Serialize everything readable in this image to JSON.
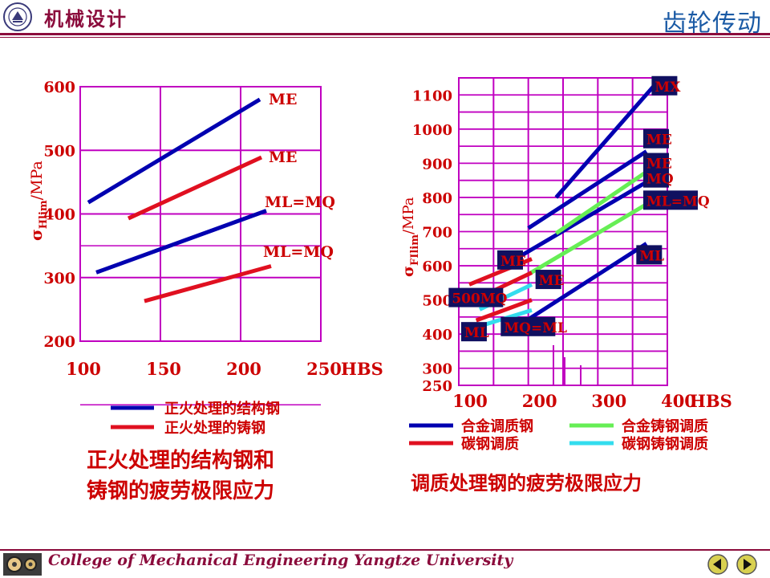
{
  "header": {
    "course_title": "机械设计",
    "section_title": "齿轮传动"
  },
  "footer": {
    "text": "College of Mechanical Engineering Yangtze University",
    "prev_icon": "triangle-left-icon",
    "next_icon": "triangle-right-icon"
  },
  "colors": {
    "accent": "#8b0c3c",
    "grid": "#c000c0",
    "blue": "#0000b0",
    "red": "#e01020",
    "green": "#66ee55",
    "cyan": "#33ddee",
    "label_red": "#cc0000",
    "label_box": "#101060"
  },
  "chart_data": [
    {
      "type": "line",
      "ylabel_sub": "Hlim",
      "ylabel_unit": "/MPa",
      "x_ticks": [
        "100",
        "150",
        "200",
        "250"
      ],
      "x_unit": "HBS",
      "y_ticks": [
        "200",
        "300",
        "400",
        "500",
        "600"
      ],
      "xlim": [
        100,
        250
      ],
      "ylim": [
        200,
        600
      ],
      "series": [
        {
          "name": "正火处理的结构钢",
          "label": "ME",
          "color": "blue",
          "points": [
            [
              105,
              418
            ],
            [
              212,
              580
            ]
          ]
        },
        {
          "name": "正火处理的铸钢",
          "label": "ME",
          "color": "red",
          "points": [
            [
              130,
              393
            ],
            [
              213,
              489
            ]
          ]
        },
        {
          "name": "正火处理的结构钢",
          "label": "ML=MQ",
          "color": "blue",
          "points": [
            [
              110,
              308
            ],
            [
              216,
              405
            ]
          ]
        },
        {
          "name": "正火处理的铸钢",
          "label": "ML=MQ",
          "color": "red",
          "points": [
            [
              140,
              263
            ],
            [
              219,
              318
            ]
          ]
        }
      ],
      "legend": [
        {
          "text": "正火处理的结构钢",
          "color": "blue"
        },
        {
          "text": "正火处理的铸钢",
          "color": "red"
        }
      ],
      "caption": [
        "正火处理的结构钢和",
        "铸钢的疲劳极限应力"
      ]
    },
    {
      "type": "line",
      "ylabel_sub": "FIlim",
      "ylabel_unit": "/MPa",
      "x_ticks": [
        "100",
        "200",
        "300",
        "400"
      ],
      "x_unit": "HBS",
      "y_ticks": [
        "250",
        "300",
        "400",
        "500",
        "600",
        "700",
        "800",
        "900",
        "1000",
        "1100"
      ],
      "xlim": [
        100,
        400
      ],
      "ylim": [
        250,
        1150
      ],
      "series": [
        {
          "name": "合金调质钢",
          "label": "MX",
          "color": "blue",
          "points": [
            [
              240,
              800
            ],
            [
              380,
              1125
            ]
          ]
        },
        {
          "name": "合金调质钢",
          "label": "ME",
          "color": "blue",
          "points": [
            [
              200,
              710
            ],
            [
              370,
              935
            ]
          ]
        },
        {
          "name": "合金调质钢",
          "label": "MQ",
          "color": "blue",
          "points": [
            [
              190,
              630
            ],
            [
              370,
              845
            ]
          ]
        },
        {
          "name": "合金调质钢",
          "label": "ML",
          "color": "blue",
          "points": [
            [
              190,
              430
            ],
            [
              370,
              665
            ]
          ]
        },
        {
          "name": "合金铸钢调质",
          "label": "ME",
          "color": "green",
          "points": [
            [
              240,
              695
            ],
            [
              370,
              875
            ]
          ]
        },
        {
          "name": "合金铸钢调质",
          "label": "ML=MQ",
          "color": "green",
          "points": [
            [
              200,
              575
            ],
            [
              370,
              780
            ]
          ]
        },
        {
          "name": "碳钢调质",
          "label": "ME",
          "color": "red",
          "points": [
            [
              115,
              545
            ],
            [
              205,
              620
            ]
          ]
        },
        {
          "name": "碳钢调质",
          "label": "MQ",
          "color": "red",
          "points": [
            [
              120,
              498
            ],
            [
              205,
              580
            ]
          ]
        },
        {
          "name": "碳钢调质",
          "label": "MQ=ML",
          "color": "red",
          "points": [
            [
              125,
              440
            ],
            [
              205,
              500
            ]
          ]
        },
        {
          "name": "碳钢铸钢调质",
          "label": "ME",
          "color": "cyan",
          "points": [
            [
              130,
              472
            ],
            [
              205,
              545
            ]
          ]
        },
        {
          "name": "碳钢铸钢调质",
          "label": "ML",
          "color": "cyan",
          "points": [
            [
              125,
              420
            ],
            [
              205,
              470
            ]
          ]
        }
      ],
      "labels": [
        {
          "text": "MX",
          "x": 382,
          "y": 1120
        },
        {
          "text": "ME",
          "x": 370,
          "y": 965
        },
        {
          "text": "ME",
          "x": 370,
          "y": 895
        },
        {
          "text": "MQ",
          "x": 370,
          "y": 850
        },
        {
          "text": "ML=MQ",
          "x": 370,
          "y": 785
        },
        {
          "text": "ML",
          "x": 360,
          "y": 625
        },
        {
          "text": "ME",
          "x": 160,
          "y": 610
        },
        {
          "text": "ME",
          "x": 215,
          "y": 553
        },
        {
          "text": "500MQ",
          "x": 90,
          "y": 500
        },
        {
          "text": "MQ=ML",
          "x": 165,
          "y": 415
        },
        {
          "text": "ML",
          "x": 108,
          "y": 400
        }
      ],
      "legend": [
        {
          "text": "合金调质钢",
          "color": "blue"
        },
        {
          "text": "合金铸钢调质",
          "color": "green"
        },
        {
          "text": "碳钢调质",
          "color": "red"
        },
        {
          "text": "碳钢铸钢调质",
          "color": "cyan"
        }
      ],
      "caption": [
        "调质处理钢的疲劳极限应力"
      ]
    }
  ]
}
